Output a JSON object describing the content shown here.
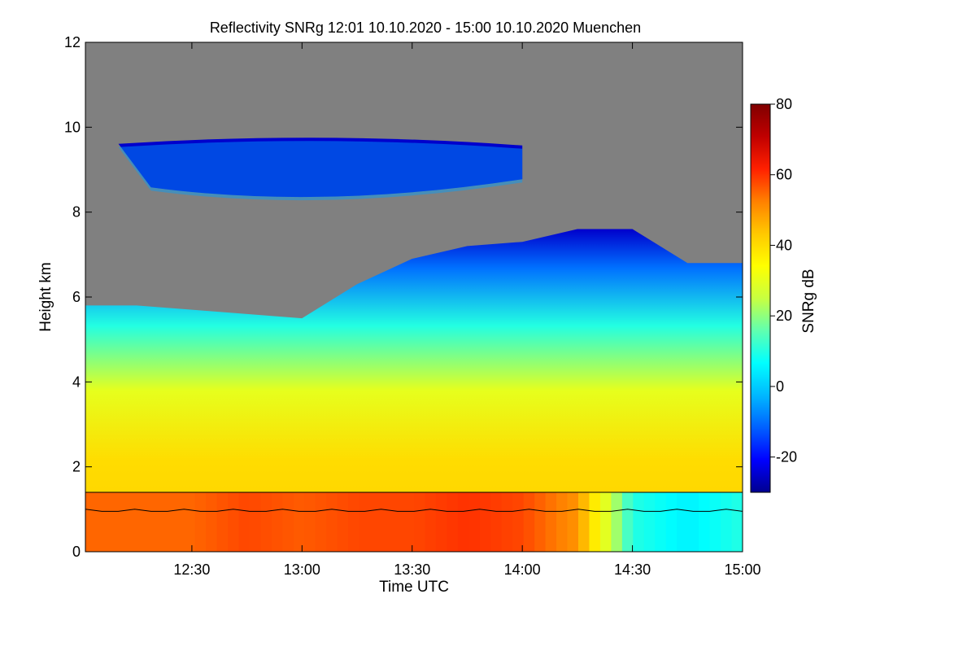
{
  "chart_data": {
    "type": "heatmap",
    "title": "Reflectivity SNRg   12:01 10.10.2020 - 15:00 10.10.2020 Muenchen",
    "xlabel": "Time UTC",
    "ylabel": "Height km",
    "xlim": [
      "12:01",
      "15:00"
    ],
    "ylim": [
      0,
      12
    ],
    "x_ticks": [
      {
        "label": "12:30",
        "value": 750
      },
      {
        "label": "13:00",
        "value": 780
      },
      {
        "label": "13:30",
        "value": 810
      },
      {
        "label": "14:00",
        "value": 840
      },
      {
        "label": "14:30",
        "value": 870
      },
      {
        "label": "15:00",
        "value": 900
      }
    ],
    "y_ticks": [
      0,
      2,
      4,
      6,
      8,
      10,
      12
    ],
    "colorbar": {
      "label": "SNRg dB",
      "range": [
        -30,
        80
      ],
      "ticks": [
        -20,
        0,
        20,
        40,
        60,
        80
      ],
      "colors": [
        "#00008f",
        "#0000ff",
        "#0060ff",
        "#00b8ff",
        "#00ffff",
        "#60ffb0",
        "#c8ff40",
        "#ffff00",
        "#ffc800",
        "#ff8000",
        "#ff2000",
        "#c00000",
        "#800000"
      ]
    },
    "no_signal_color": "#808080",
    "cloud_profile": [
      {
        "time": 721,
        "top_km": 5.8,
        "near_ground_snr": 55
      },
      {
        "time": 735,
        "top_km": 5.8,
        "near_ground_snr": 55
      },
      {
        "time": 750,
        "top_km": 5.7,
        "near_ground_snr": 55
      },
      {
        "time": 765,
        "top_km": 5.6,
        "near_ground_snr": 58
      },
      {
        "time": 780,
        "top_km": 5.5,
        "near_ground_snr": 56
      },
      {
        "time": 795,
        "top_km": 6.3,
        "near_ground_snr": 58
      },
      {
        "time": 810,
        "top_km": 6.9,
        "near_ground_snr": 58
      },
      {
        "time": 825,
        "top_km": 7.2,
        "near_ground_snr": 60
      },
      {
        "time": 840,
        "top_km": 7.3,
        "near_ground_snr": 58
      },
      {
        "time": 855,
        "top_km": 7.6,
        "near_ground_snr": 50
      },
      {
        "time": 870,
        "top_km": 7.6,
        "near_ground_snr": 10
      },
      {
        "time": 885,
        "top_km": 6.8,
        "near_ground_snr": 5
      },
      {
        "time": 900,
        "top_km": 6.8,
        "near_ground_snr": 10
      }
    ],
    "upper_cloud_layer": {
      "time_range": [
        "12:10",
        "14:00"
      ],
      "height_range_km": [
        8.2,
        9.8
      ],
      "snr_range_db": [
        -25,
        -5
      ]
    },
    "reference_lines": [
      {
        "name": "upper line",
        "height_km": 1.4
      },
      {
        "name": "lower line",
        "height_km": [
          0.95,
          1.0
        ]
      }
    ]
  }
}
